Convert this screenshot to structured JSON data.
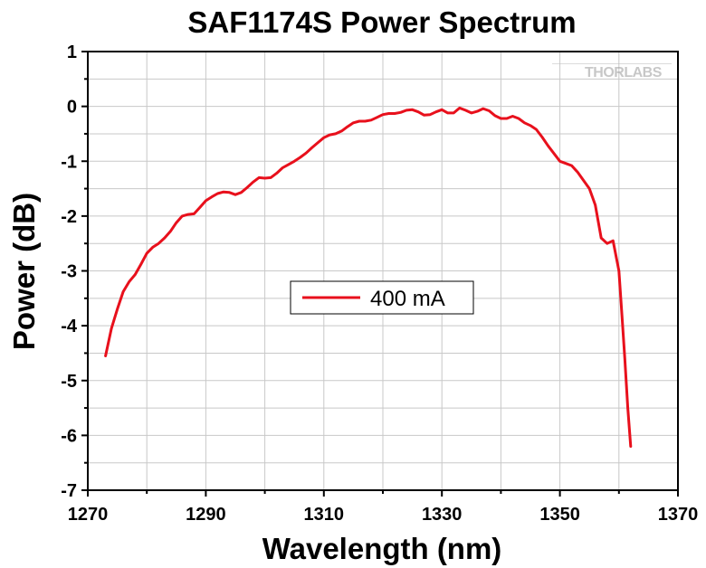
{
  "chart_data": {
    "type": "line",
    "title": "SAF1174S Power Spectrum",
    "xlabel": "Wavelength (nm)",
    "ylabel": "Power (dB)",
    "xlim": [
      1270,
      1370
    ],
    "ylim": [
      -7,
      1
    ],
    "xticks": [
      1270,
      1290,
      1310,
      1330,
      1350,
      1370
    ],
    "yticks": [
      1,
      0,
      -1,
      -2,
      -3,
      -4,
      -5,
      -6,
      -7
    ],
    "grid": true,
    "legend_position": "center-left",
    "watermark": "THORLABS",
    "series": [
      {
        "name": "400 mA",
        "color": "#e8101c",
        "x": [
          1273,
          1274,
          1275,
          1276,
          1277,
          1278,
          1279,
          1280,
          1281,
          1282,
          1283,
          1284,
          1285,
          1286,
          1287,
          1288,
          1289,
          1290,
          1291,
          1292,
          1293,
          1294,
          1295,
          1296,
          1297,
          1298,
          1299,
          1300,
          1301,
          1302,
          1303,
          1304,
          1305,
          1306,
          1307,
          1308,
          1309,
          1310,
          1311,
          1312,
          1313,
          1314,
          1315,
          1316,
          1317,
          1318,
          1319,
          1320,
          1321,
          1322,
          1323,
          1324,
          1325,
          1326,
          1327,
          1328,
          1329,
          1330,
          1331,
          1332,
          1333,
          1334,
          1335,
          1336,
          1337,
          1338,
          1339,
          1340,
          1341,
          1342,
          1343,
          1344,
          1345,
          1346,
          1347,
          1348,
          1349,
          1350,
          1351,
          1352,
          1353,
          1354,
          1355,
          1356,
          1357,
          1358,
          1359,
          1360,
          1360.5,
          1361,
          1361.5,
          1362
        ],
        "y": [
          -4.55,
          -4.05,
          -3.7,
          -3.38,
          -3.2,
          -3.07,
          -2.88,
          -2.68,
          -2.57,
          -2.5,
          -2.4,
          -2.28,
          -2.12,
          -2.0,
          -1.97,
          -1.96,
          -1.84,
          -1.72,
          -1.65,
          -1.59,
          -1.56,
          -1.57,
          -1.61,
          -1.57,
          -1.48,
          -1.38,
          -1.3,
          -1.31,
          -1.3,
          -1.22,
          -1.12,
          -1.06,
          -1.0,
          -0.93,
          -0.85,
          -0.75,
          -0.66,
          -0.57,
          -0.52,
          -0.5,
          -0.45,
          -0.37,
          -0.3,
          -0.27,
          -0.27,
          -0.25,
          -0.2,
          -0.15,
          -0.13,
          -0.13,
          -0.11,
          -0.07,
          -0.06,
          -0.1,
          -0.16,
          -0.15,
          -0.1,
          -0.06,
          -0.12,
          -0.12,
          -0.03,
          -0.07,
          -0.12,
          -0.09,
          -0.04,
          -0.08,
          -0.17,
          -0.22,
          -0.22,
          -0.18,
          -0.22,
          -0.3,
          -0.35,
          -0.42,
          -0.56,
          -0.72,
          -0.86,
          -1.0,
          -1.04,
          -1.08,
          -1.2,
          -1.35,
          -1.5,
          -1.8,
          -2.4,
          -2.5,
          -2.45,
          -3.0,
          -3.8,
          -4.6,
          -5.5,
          -6.2
        ]
      }
    ]
  }
}
